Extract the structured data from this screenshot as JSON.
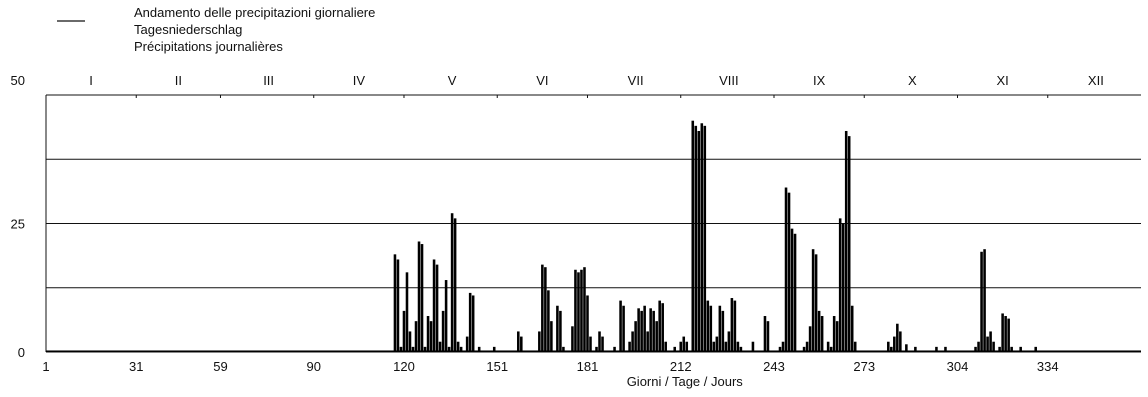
{
  "chart_data": {
    "type": "bar",
    "legend": {
      "entries": [
        "Andamento delle precipitazioni giornaliere",
        "Tagesniederschlag",
        "Précipitations journalières"
      ]
    },
    "xlabel": "Giorni / Tage / Jours",
    "ylabel": "",
    "xlim": [
      1,
      365
    ],
    "ylim": [
      0,
      50
    ],
    "y_ticks": [
      0,
      25,
      50
    ],
    "y_gridlines": [
      12.5,
      25,
      37.5
    ],
    "x_ticks": [
      1,
      31,
      59,
      90,
      120,
      151,
      181,
      212,
      243,
      273,
      304,
      334
    ],
    "months": [
      {
        "label": "I",
        "day": 16
      },
      {
        "label": "II",
        "day": 45
      },
      {
        "label": "III",
        "day": 75
      },
      {
        "label": "IV",
        "day": 105
      },
      {
        "label": "V",
        "day": 136
      },
      {
        "label": "VI",
        "day": 166
      },
      {
        "label": "VII",
        "day": 197
      },
      {
        "label": "VIII",
        "day": 228
      },
      {
        "label": "IX",
        "day": 258
      },
      {
        "label": "X",
        "day": 289
      },
      {
        "label": "XI",
        "day": 319
      },
      {
        "label": "XII",
        "day": 350
      }
    ],
    "baseline": 0.3,
    "bars": [
      [
        117,
        19
      ],
      [
        118,
        18
      ],
      [
        119,
        1
      ],
      [
        120,
        8
      ],
      [
        121,
        15.5
      ],
      [
        122,
        4
      ],
      [
        123,
        1
      ],
      [
        124,
        6
      ],
      [
        125,
        21.5
      ],
      [
        126,
        21
      ],
      [
        127,
        1
      ],
      [
        128,
        7
      ],
      [
        129,
        6
      ],
      [
        130,
        18
      ],
      [
        131,
        17
      ],
      [
        132,
        2
      ],
      [
        133,
        8
      ],
      [
        134,
        14
      ],
      [
        135,
        1
      ],
      [
        136,
        27
      ],
      [
        137,
        26
      ],
      [
        138,
        2
      ],
      [
        139,
        1
      ],
      [
        141,
        3
      ],
      [
        142,
        11.5
      ],
      [
        143,
        11
      ],
      [
        145,
        1
      ],
      [
        150,
        1
      ],
      [
        158,
        4
      ],
      [
        159,
        3
      ],
      [
        165,
        4
      ],
      [
        166,
        17
      ],
      [
        167,
        16.5
      ],
      [
        168,
        12
      ],
      [
        169,
        6
      ],
      [
        171,
        9
      ],
      [
        172,
        8
      ],
      [
        173,
        1
      ],
      [
        176,
        5
      ],
      [
        177,
        16
      ],
      [
        178,
        15.5
      ],
      [
        179,
        16
      ],
      [
        180,
        16.5
      ],
      [
        181,
        11
      ],
      [
        182,
        3
      ],
      [
        184,
        1
      ],
      [
        185,
        4
      ],
      [
        186,
        3
      ],
      [
        190,
        1
      ],
      [
        192,
        10
      ],
      [
        193,
        9
      ],
      [
        195,
        2
      ],
      [
        196,
        4
      ],
      [
        197,
        6
      ],
      [
        198,
        8.5
      ],
      [
        199,
        8
      ],
      [
        200,
        9
      ],
      [
        201,
        4
      ],
      [
        202,
        8.5
      ],
      [
        203,
        8
      ],
      [
        204,
        6
      ],
      [
        205,
        10
      ],
      [
        206,
        9.5
      ],
      [
        207,
        2
      ],
      [
        210,
        1
      ],
      [
        212,
        2
      ],
      [
        213,
        3
      ],
      [
        214,
        2
      ],
      [
        216,
        45
      ],
      [
        217,
        44
      ],
      [
        218,
        43
      ],
      [
        219,
        44.5
      ],
      [
        220,
        44
      ],
      [
        221,
        10
      ],
      [
        222,
        9
      ],
      [
        223,
        2
      ],
      [
        224,
        3
      ],
      [
        225,
        9
      ],
      [
        226,
        8
      ],
      [
        227,
        2
      ],
      [
        228,
        4
      ],
      [
        229,
        10.5
      ],
      [
        230,
        10
      ],
      [
        231,
        2
      ],
      [
        232,
        1
      ],
      [
        236,
        2
      ],
      [
        240,
        7
      ],
      [
        241,
        6
      ],
      [
        245,
        1
      ],
      [
        246,
        2
      ],
      [
        247,
        32
      ],
      [
        248,
        31
      ],
      [
        249,
        24
      ],
      [
        250,
        23
      ],
      [
        253,
        1
      ],
      [
        254,
        2
      ],
      [
        255,
        5
      ],
      [
        256,
        20
      ],
      [
        257,
        19
      ],
      [
        258,
        8
      ],
      [
        259,
        7
      ],
      [
        261,
        2
      ],
      [
        262,
        1
      ],
      [
        263,
        7
      ],
      [
        264,
        6
      ],
      [
        265,
        26
      ],
      [
        266,
        25
      ],
      [
        267,
        43
      ],
      [
        268,
        42
      ],
      [
        269,
        9
      ],
      [
        270,
        2
      ],
      [
        281,
        2
      ],
      [
        282,
        1
      ],
      [
        283,
        3
      ],
      [
        284,
        5.5
      ],
      [
        285,
        4
      ],
      [
        287,
        1.5
      ],
      [
        290,
        1
      ],
      [
        297,
        1
      ],
      [
        300,
        1
      ],
      [
        310,
        1
      ],
      [
        311,
        2
      ],
      [
        312,
        19.5
      ],
      [
        313,
        20
      ],
      [
        314,
        3
      ],
      [
        315,
        4
      ],
      [
        316,
        2
      ],
      [
        318,
        1
      ],
      [
        319,
        7.5
      ],
      [
        320,
        7
      ],
      [
        321,
        6.5
      ],
      [
        322,
        1
      ],
      [
        325,
        1
      ],
      [
        330,
        1
      ]
    ]
  }
}
